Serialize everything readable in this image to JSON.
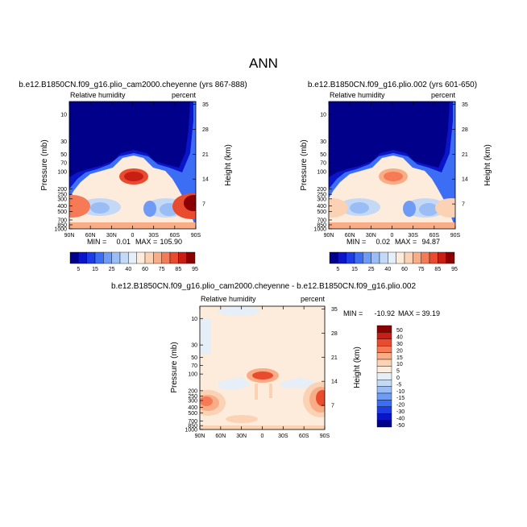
{
  "page": {
    "main_title": "ANN"
  },
  "palette_positive": [
    "#00008b",
    "#0a14c8",
    "#1e3ce6",
    "#3c6ef5",
    "#6e9bf5",
    "#9bbdf5",
    "#c3d9f5",
    "#e6eff8",
    "#fdebdc",
    "#fcd2b4",
    "#f9ad87",
    "#f57a55",
    "#e84b2d",
    "#c81e14",
    "#8b0000"
  ],
  "palette_diff": [
    "#00008b",
    "#0a14c8",
    "#1e3ce6",
    "#3c6ef5",
    "#6e9bf5",
    "#9bbdf5",
    "#c3d9f5",
    "#e6eff8",
    "#fdebdc",
    "#fcd2b4",
    "#f9ad87",
    "#f57a55",
    "#e84b2d",
    "#c81e14",
    "#8b0000"
  ],
  "chart_data": [
    {
      "type": "heatmap",
      "title": "b.e12.B1850CN.f09_g16.plio_cam2000.cheyenne (yrs 867-888)",
      "left_label": "Relative humidity",
      "right_label": "percent",
      "ylabel": "Pressure (mb)",
      "y2label": "Height (km)",
      "x_ticks": [
        "90N",
        "60N",
        "30N",
        "0",
        "30S",
        "60S",
        "90S"
      ],
      "y_ticks": [
        "10",
        "30",
        "50",
        "70",
        "100",
        "200",
        "250",
        "300",
        "400",
        "500",
        "700",
        "850",
        "1000"
      ],
      "y2_ticks": [
        "35",
        "28",
        "21",
        "14",
        "7"
      ],
      "min_label": "MIN =",
      "min_value": "0.01",
      "max_label": "MAX =",
      "max_value": "105.90",
      "colorbar_labels": [
        "5",
        "15",
        "25",
        "40",
        "60",
        "75",
        "85",
        "95"
      ]
    },
    {
      "type": "heatmap",
      "title": "b.e12.B1850CN.f09_g16.plio.002 (yrs 601-650)",
      "left_label": "Relative humidity",
      "right_label": "percent",
      "ylabel": "Pressure (mb)",
      "y2label": "Height (km)",
      "x_ticks": [
        "90N",
        "60N",
        "30N",
        "0",
        "30S",
        "60S",
        "90S"
      ],
      "y_ticks": [
        "10",
        "30",
        "50",
        "70",
        "100",
        "200",
        "250",
        "300",
        "400",
        "500",
        "700",
        "850",
        "1000"
      ],
      "y2_ticks": [
        "35",
        "28",
        "21",
        "14",
        "7"
      ],
      "min_label": "MIN =",
      "min_value": "0.02",
      "max_label": "MAX =",
      "max_value": "94.87",
      "colorbar_labels": [
        "5",
        "15",
        "25",
        "40",
        "60",
        "75",
        "85",
        "95"
      ]
    },
    {
      "type": "heatmap",
      "title": "b.e12.B1850CN.f09_g16.plio_cam2000.cheyenne - b.e12.B1850CN.f09_g16.plio.002",
      "left_label": "Relative humidity",
      "right_label": "percent",
      "ylabel": "Pressure (mb)",
      "y2label": "Height (km)",
      "x_ticks": [
        "90N",
        "60N",
        "30N",
        "0",
        "30S",
        "60S",
        "90S"
      ],
      "y_ticks": [
        "10",
        "30",
        "50",
        "70",
        "100",
        "200",
        "250",
        "300",
        "400",
        "500",
        "700",
        "850",
        "1000"
      ],
      "y2_ticks": [
        "35",
        "28",
        "21",
        "14",
        "7"
      ],
      "min_label": "MIN =",
      "min_value": "-10.92",
      "max_label": "MAX =",
      "max_value": "39.19",
      "colorbar_labels": [
        "50",
        "40",
        "30",
        "20",
        "15",
        "10",
        "5",
        "0",
        "-5",
        "-10",
        "-15",
        "-20",
        "-30",
        "-40",
        "-50"
      ]
    }
  ]
}
